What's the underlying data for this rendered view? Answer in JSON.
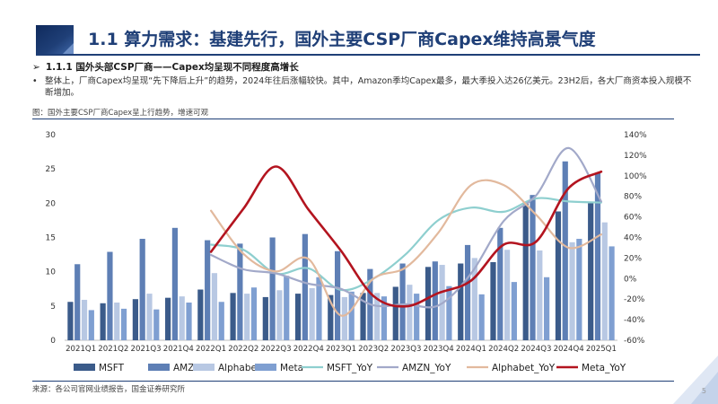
{
  "header": {
    "title": "1.1 算力需求：基建先行，国外主要CSP厂商Capex维持高景气度",
    "accent_color": "#1f3f77"
  },
  "section": {
    "arrow": "➢",
    "subtitle": "1.1.1 国外头部CSP厂商——Capex均呈现不同程度高增长",
    "bullet_mark": "•",
    "bullet": "整体上，厂商Capex均呈现“先下降后上升”的趋势，2024年往后涨幅较快。其中，Amazon季均Capex最多，最大季投入达26亿美元。23H2后，各大厂商资本投入规模不断增加。"
  },
  "figure": {
    "caption": "图：国外主要CSP厂商Capex呈上行趋势，增速可观",
    "source": "来源：各公司官网业绩报告，国金证券研究所"
  },
  "footer": {
    "page": "5"
  },
  "chart_data": {
    "type": "bar",
    "title": "",
    "xlabel": "",
    "ylabel": "",
    "categories": [
      "2021Q1",
      "2021Q2",
      "2021Q3",
      "2021Q4",
      "2022Q1",
      "2022Q2",
      "2022Q3",
      "2022Q4",
      "2023Q1",
      "2023Q2",
      "2023Q3",
      "2023Q4",
      "2024Q1",
      "2024Q2",
      "2024Q3",
      "2024Q4",
      "2025Q1"
    ],
    "ylim": [
      0,
      30
    ],
    "y_ticks": [
      0,
      5,
      10,
      15,
      20,
      25,
      30
    ],
    "y2lim": [
      -60,
      140
    ],
    "y2_ticks": [
      "-60%",
      "-40%",
      "-20%",
      "0%",
      "20%",
      "40%",
      "60%",
      "80%",
      "100%",
      "120%",
      "140%"
    ],
    "legend_position": "bottom",
    "series": [
      {
        "name": "MSFT",
        "kind": "bar",
        "axis": "left",
        "color": "#3b5b8a",
        "values": [
          5.6,
          5.4,
          6.0,
          6.2,
          7.4,
          6.9,
          6.3,
          6.8,
          6.6,
          6.9,
          7.8,
          10.7,
          11.2,
          11.4,
          20.0,
          18.8,
          20.0
        ]
      },
      {
        "name": "AMZN",
        "kind": "bar",
        "axis": "left",
        "color": "#5e7fb5",
        "values": [
          11.1,
          12.9,
          14.8,
          16.4,
          14.6,
          14.1,
          15.0,
          15.5,
          13.0,
          10.4,
          11.2,
          11.5,
          13.9,
          16.4,
          21.2,
          26.1,
          24.4
        ]
      },
      {
        "name": "Alphabet",
        "kind": "bar",
        "axis": "left",
        "color": "#b8c8e3",
        "values": [
          5.9,
          5.5,
          6.8,
          6.4,
          9.8,
          6.8,
          7.3,
          7.6,
          6.3,
          6.9,
          8.1,
          11.0,
          12.0,
          13.2,
          13.1,
          14.3,
          17.2
        ]
      },
      {
        "name": "Meta",
        "kind": "bar",
        "axis": "left",
        "color": "#7f9fd1",
        "values": [
          4.4,
          4.6,
          4.5,
          5.5,
          5.6,
          7.7,
          9.4,
          9.2,
          7.1,
          6.4,
          6.8,
          7.9,
          6.7,
          8.5,
          9.2,
          14.8,
          13.7
        ]
      },
      {
        "name": "MSFT_YoY",
        "kind": "line",
        "axis": "right",
        "color": "#8ecfcf",
        "values": [
          null,
          null,
          null,
          null,
          33,
          28,
          5,
          10,
          -11,
          0,
          24,
          57,
          69,
          65,
          78,
          75,
          74
        ]
      },
      {
        "name": "AMZN_YoY",
        "kind": "line",
        "axis": "right",
        "color": "#a2a9c9",
        "values": [
          null,
          null,
          null,
          null,
          23,
          9,
          5,
          -5,
          -10,
          -26,
          -25,
          -26,
          5,
          56,
          81,
          127,
          75
        ]
      },
      {
        "name": "Alphabet_YoY",
        "kind": "line",
        "axis": "right",
        "color": "#e2b99d",
        "values": [
          null,
          null,
          null,
          null,
          66,
          24,
          7,
          19,
          -36,
          0,
          11,
          45,
          91,
          91,
          62,
          30,
          43
        ]
      },
      {
        "name": "Meta_YoY",
        "kind": "line",
        "axis": "right",
        "color": "#b3141f",
        "values": [
          null,
          null,
          null,
          null,
          26,
          68,
          109,
          67,
          27,
          -17,
          -27,
          -14,
          -2,
          33,
          36,
          88,
          104
        ]
      }
    ]
  }
}
